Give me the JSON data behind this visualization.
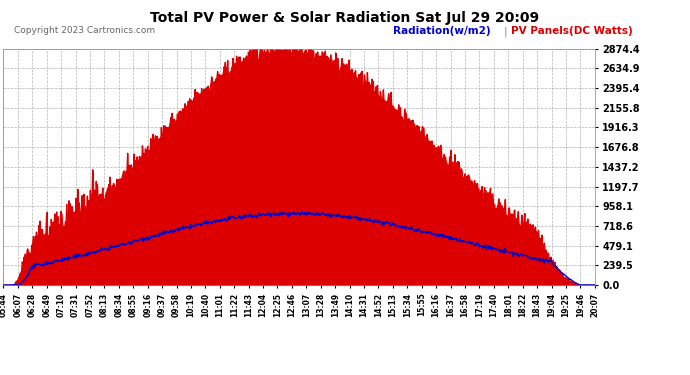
{
  "title": "Total PV Power & Solar Radiation Sat Jul 29 20:09",
  "copyright": "Copyright 2023 Cartronics.com",
  "legend_radiation": "Radiation(w/m2)",
  "legend_pv": "PV Panels(DC Watts)",
  "yticks": [
    0.0,
    239.5,
    479.1,
    718.6,
    958.1,
    1197.7,
    1437.2,
    1676.8,
    1916.3,
    2155.8,
    2395.4,
    2634.9,
    2874.4
  ],
  "ymax": 2874.4,
  "ymin": 0.0,
  "xtick_labels": [
    "05:44",
    "06:07",
    "06:28",
    "06:49",
    "07:10",
    "07:31",
    "07:52",
    "08:13",
    "08:34",
    "08:55",
    "09:16",
    "09:37",
    "09:58",
    "10:19",
    "10:40",
    "11:01",
    "11:22",
    "11:43",
    "12:04",
    "12:25",
    "12:46",
    "13:07",
    "13:28",
    "13:49",
    "14:10",
    "14:31",
    "14:52",
    "15:13",
    "15:34",
    "15:55",
    "16:16",
    "16:37",
    "16:58",
    "17:19",
    "17:40",
    "18:01",
    "18:22",
    "18:43",
    "19:04",
    "19:25",
    "19:46",
    "20:07"
  ],
  "bg_color": "#ffffff",
  "plot_bg_color": "#ffffff",
  "grid_color": "#aaaaaa",
  "pv_fill_color": "#dd0000",
  "radiation_line_color": "#0000cc",
  "title_color": "#000000",
  "tick_color": "#000000",
  "copyright_color": "#666666",
  "legend_radiation_color": "#0000cc",
  "legend_pv_color": "#dd0000"
}
